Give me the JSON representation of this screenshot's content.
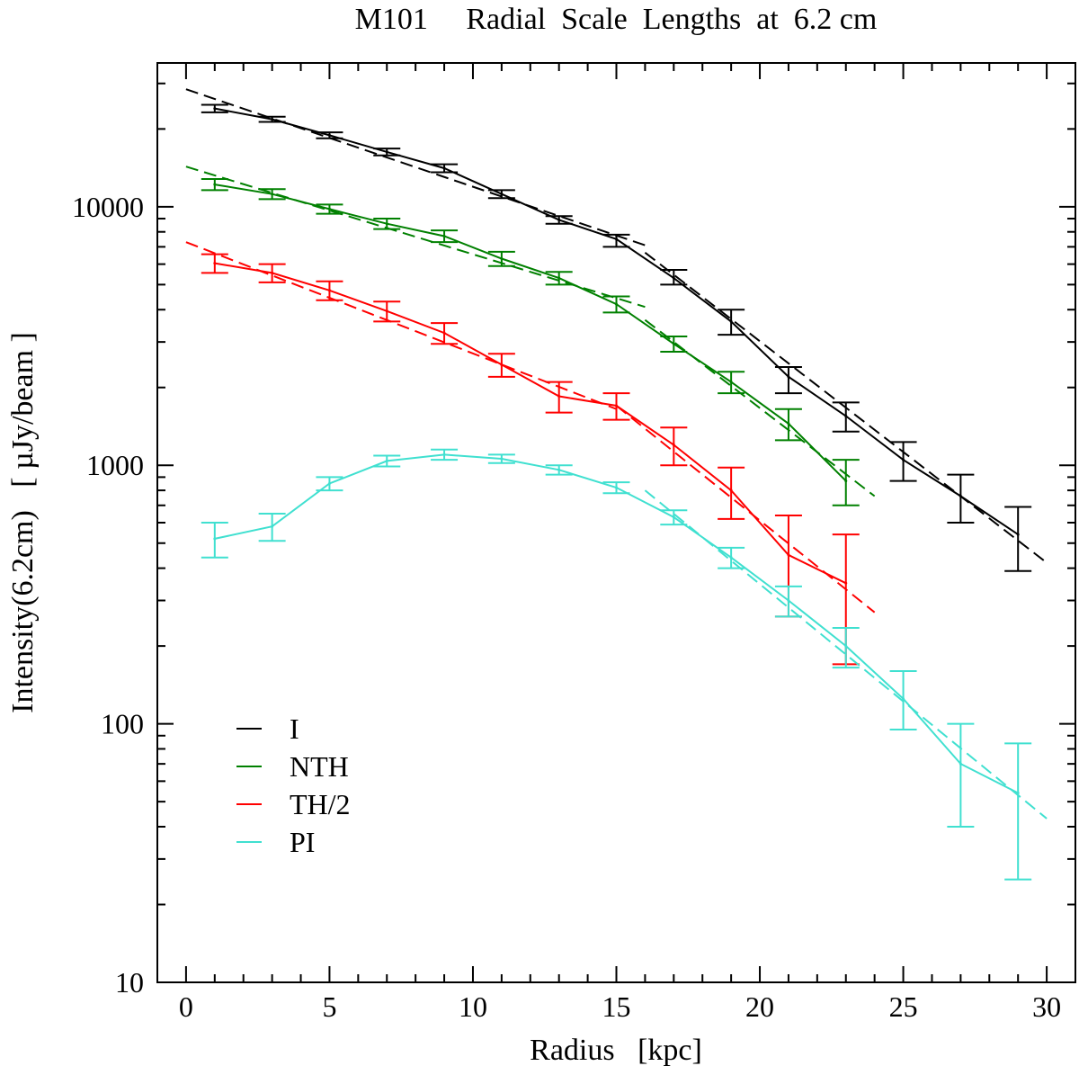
{
  "chart_data": {
    "type": "line",
    "title": "M101     Radial  Scale  Lengths  at  6.2 cm",
    "xlabel": "Radius   [kpc]",
    "ylabel": "Intensity(6.2cm)   [ µJy/beam ]",
    "x_scale": "linear",
    "y_scale": "log",
    "xlim": [
      -1,
      31
    ],
    "ylim": [
      10,
      36000
    ],
    "xticks": [
      0,
      5,
      10,
      15,
      20,
      25,
      30
    ],
    "xtick_labels": [
      "0",
      "5",
      "10",
      "15",
      "20",
      "25",
      "30"
    ],
    "yticks": [
      10,
      100,
      1000,
      10000
    ],
    "ytick_labels": [
      "10",
      "100",
      "1000",
      "10000"
    ],
    "grid": false,
    "legend_position": "lower-left",
    "series": [
      {
        "name": "I",
        "color": "#000000",
        "x": [
          1,
          3,
          5,
          7,
          9,
          11,
          13,
          15,
          17,
          19,
          21,
          23,
          25,
          27,
          29
        ],
        "y": [
          24000,
          21800,
          18900,
          16300,
          14100,
          11200,
          8900,
          7500,
          5300,
          3600,
          2200,
          1550,
          1050,
          760,
          540
        ],
        "err_low": [
          800,
          500,
          500,
          500,
          500,
          400,
          300,
          500,
          300,
          400,
          300,
          200,
          180,
          160,
          150
        ],
        "err_high": [
          800,
          500,
          500,
          500,
          500,
          400,
          300,
          300,
          400,
          400,
          200,
          200,
          180,
          160,
          150
        ],
        "fits": [
          {
            "x": [
              0,
              16
            ],
            "y": [
              28500,
              7100
            ]
          },
          {
            "x": [
              16,
              30
            ],
            "y": [
              6650,
              420
            ]
          }
        ]
      },
      {
        "name": "NTH",
        "color": "#008000",
        "x": [
          1,
          3,
          5,
          7,
          9,
          11,
          13,
          15,
          17,
          19,
          21,
          23
        ],
        "y": [
          12200,
          11200,
          9800,
          8600,
          7700,
          6300,
          5300,
          4200,
          2950,
          2100,
          1450,
          870
        ],
        "err_low": [
          600,
          500,
          400,
          400,
          400,
          400,
          300,
          300,
          200,
          200,
          200,
          170
        ],
        "err_high": [
          600,
          500,
          400,
          400,
          400,
          400,
          300,
          300,
          200,
          200,
          200,
          180
        ],
        "fits": [
          {
            "x": [
              0,
              16
            ],
            "y": [
              14300,
              4100
            ]
          },
          {
            "x": [
              16,
              24
            ],
            "y": [
              3650,
              760
            ]
          }
        ]
      },
      {
        "name": "TH/2",
        "color": "#ff0000",
        "x": [
          1,
          3,
          5,
          7,
          9,
          11,
          13,
          15,
          17,
          19,
          21,
          23
        ],
        "y": [
          6050,
          5550,
          4750,
          3950,
          3250,
          2450,
          1850,
          1700,
          1200,
          800,
          450,
          350
        ],
        "err_low": [
          500,
          450,
          400,
          350,
          300,
          250,
          250,
          200,
          200,
          180,
          190,
          180
        ],
        "err_high": [
          500,
          450,
          400,
          350,
          300,
          250,
          250,
          200,
          200,
          180,
          190,
          190
        ],
        "fits": [
          {
            "x": [
              0,
              15
            ],
            "y": [
              7300,
              1650
            ]
          },
          {
            "x": [
              15,
              24
            ],
            "y": [
              1700,
              270
            ]
          }
        ]
      },
      {
        "name": "PI",
        "color": "#40e0d0",
        "x": [
          1,
          3,
          5,
          7,
          9,
          11,
          13,
          15,
          17,
          19,
          21,
          23,
          25,
          27,
          29
        ],
        "y": [
          520,
          580,
          850,
          1040,
          1100,
          1060,
          960,
          820,
          630,
          440,
          300,
          200,
          125,
          70,
          54
        ],
        "err_low": [
          80,
          70,
          50,
          50,
          50,
          40,
          40,
          40,
          40,
          40,
          40,
          35,
          30,
          30,
          29
        ],
        "err_high": [
          80,
          70,
          50,
          50,
          50,
          40,
          40,
          40,
          40,
          40,
          40,
          35,
          35,
          30,
          30
        ],
        "fits": [
          {
            "x": [
              16,
              30
            ],
            "y": [
              800,
              43
            ]
          }
        ]
      }
    ]
  }
}
